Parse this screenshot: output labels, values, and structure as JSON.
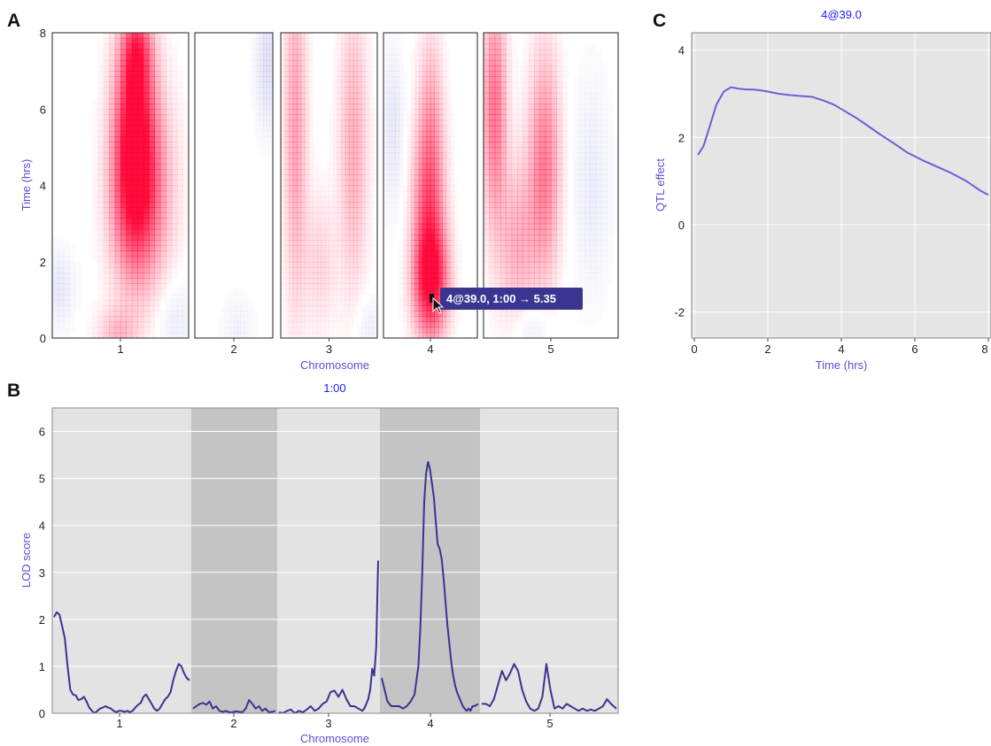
{
  "panels": {
    "a": {
      "letter": "A",
      "y_label": "Time (hrs)",
      "x_label": "Chromosome"
    },
    "b": {
      "letter": "B",
      "title": "1:00",
      "y_label": "LOD score",
      "x_label": "Chromosome"
    },
    "c": {
      "letter": "C",
      "title": "4@39.0",
      "y_label": "QTL effect",
      "x_label": "Time (hrs)"
    }
  },
  "tooltip": {
    "text": "4@39.0, 1:00 → 5.35"
  },
  "colors": {
    "accent": "#5b50d6",
    "title": "#1a1aff",
    "line_b": "#3b3391",
    "line_c": "#6a5fd8",
    "heat_pos": "#ff0033",
    "heat_neg": "#6a6ad0",
    "tooltip_bg": "#3a3590"
  },
  "chart_data": [
    {
      "type": "heatmap",
      "title": "",
      "xlabel": "Chromosome",
      "ylabel": "Time (hrs)",
      "chromosomes": [
        "1",
        "2",
        "3",
        "4",
        "5"
      ],
      "y_ticks": [
        "0",
        "2",
        "4",
        "6",
        "8"
      ],
      "ylim": [
        0,
        8
      ],
      "color_scale": "blue (negative) - white - red (positive)",
      "blobs": [
        {
          "chr": 1,
          "pos": 0.6,
          "time": 5.5,
          "sx": 0.1,
          "sy": 1.8,
          "value": 0.95
        },
        {
          "chr": 1,
          "pos": 0.6,
          "time": 3.5,
          "sx": 0.12,
          "sy": 1.5,
          "value": 0.55
        },
        {
          "chr": 1,
          "pos": 0.62,
          "time": 7.5,
          "sx": 0.07,
          "sy": 0.8,
          "value": 0.5
        },
        {
          "chr": 1,
          "pos": 0.75,
          "time": 4.0,
          "sx": 0.12,
          "sy": 1.8,
          "value": 0.25
        },
        {
          "chr": 1,
          "pos": 0.48,
          "time": 0.1,
          "sx": 0.1,
          "sy": 0.5,
          "value": 0.25
        },
        {
          "chr": 1,
          "pos": 0.05,
          "time": 1.3,
          "sx": 0.08,
          "sy": 0.7,
          "value": -0.15
        },
        {
          "chr": 1,
          "pos": 0.9,
          "time": 0.5,
          "sx": 0.1,
          "sy": 0.8,
          "value": -0.12
        },
        {
          "chr": 2,
          "pos": 0.92,
          "time": 7.2,
          "sx": 0.1,
          "sy": 1.2,
          "value": -0.2
        },
        {
          "chr": 2,
          "pos": 0.55,
          "time": 0.3,
          "sx": 0.15,
          "sy": 0.6,
          "value": -0.08
        },
        {
          "chr": 3,
          "pos": 0.15,
          "time": 5.5,
          "sx": 0.08,
          "sy": 3.0,
          "value": 0.35
        },
        {
          "chr": 3,
          "pos": 0.75,
          "time": 5.0,
          "sx": 0.1,
          "sy": 2.5,
          "value": 0.3
        },
        {
          "chr": 3,
          "pos": 0.4,
          "time": 2.0,
          "sx": 0.12,
          "sy": 1.2,
          "value": 0.15
        },
        {
          "chr": 3,
          "pos": 0.9,
          "time": 0.3,
          "sx": 0.1,
          "sy": 0.6,
          "value": -0.1
        },
        {
          "chr": 4,
          "pos": 0.5,
          "time": 1.5,
          "sx": 0.12,
          "sy": 1.0,
          "value": 0.95
        },
        {
          "chr": 4,
          "pos": 0.48,
          "time": 3.5,
          "sx": 0.11,
          "sy": 1.5,
          "value": 0.6
        },
        {
          "chr": 4,
          "pos": 0.5,
          "time": 6.0,
          "sx": 0.09,
          "sy": 1.5,
          "value": 0.25
        },
        {
          "chr": 4,
          "pos": 0.1,
          "time": 5.5,
          "sx": 0.08,
          "sy": 1.5,
          "value": -0.15
        },
        {
          "chr": 5,
          "pos": 0.08,
          "time": 6.0,
          "sx": 0.06,
          "sy": 2.0,
          "value": 0.55
        },
        {
          "chr": 5,
          "pos": 0.45,
          "time": 4.5,
          "sx": 0.08,
          "sy": 2.0,
          "value": 0.5
        },
        {
          "chr": 5,
          "pos": 0.25,
          "time": 2.5,
          "sx": 0.1,
          "sy": 1.5,
          "value": 0.3
        },
        {
          "chr": 5,
          "pos": 0.8,
          "time": 4.0,
          "sx": 0.1,
          "sy": 2.0,
          "value": -0.12
        },
        {
          "chr": 5,
          "pos": 0.35,
          "time": 0.3,
          "sx": 0.1,
          "sy": 0.5,
          "value": -0.15
        }
      ]
    },
    {
      "type": "line",
      "title": "1:00",
      "xlabel": "Chromosome",
      "ylabel": "LOD score",
      "ylim": [
        0,
        6.5
      ],
      "y_ticks": [
        0,
        1,
        2,
        3,
        4,
        5,
        6
      ],
      "grid": true,
      "chromosomes": [
        {
          "name": "1",
          "shade": "light",
          "x": [
            0,
            0.02,
            0.04,
            0.06,
            0.08,
            0.1,
            0.12,
            0.14,
            0.16,
            0.18,
            0.2,
            0.22,
            0.24,
            0.26,
            0.28,
            0.3,
            0.32,
            0.34,
            0.36,
            0.38,
            0.4,
            0.42,
            0.44,
            0.46,
            0.48,
            0.5,
            0.52,
            0.54,
            0.56,
            0.58,
            0.6,
            0.62,
            0.64,
            0.66,
            0.68,
            0.7,
            0.72,
            0.74,
            0.76,
            0.78,
            0.8,
            0.82,
            0.84,
            0.86,
            0.88,
            0.9,
            0.92,
            0.94,
            0.96,
            0.98,
            1.0
          ],
          "y": [
            2.05,
            2.15,
            2.1,
            1.85,
            1.6,
            1.0,
            0.5,
            0.4,
            0.38,
            0.28,
            0.3,
            0.35,
            0.25,
            0.12,
            0.05,
            0.0,
            0.05,
            0.1,
            0.12,
            0.15,
            0.12,
            0.1,
            0.05,
            0.02,
            0.05,
            0.05,
            0.03,
            0.05,
            0.02,
            0.05,
            0.12,
            0.18,
            0.22,
            0.35,
            0.4,
            0.3,
            0.2,
            0.1,
            0.05,
            0.1,
            0.2,
            0.3,
            0.35,
            0.45,
            0.7,
            0.9,
            1.05,
            1.0,
            0.85,
            0.75,
            0.7
          ]
        },
        {
          "name": "2",
          "shade": "dark",
          "x": [
            0,
            0.04,
            0.08,
            0.12,
            0.16,
            0.2,
            0.24,
            0.28,
            0.32,
            0.36,
            0.4,
            0.44,
            0.48,
            0.52,
            0.56,
            0.6,
            0.64,
            0.68,
            0.72,
            0.76,
            0.8,
            0.84,
            0.88,
            0.92,
            0.96,
            1.0
          ],
          "y": [
            0.1,
            0.15,
            0.2,
            0.22,
            0.18,
            0.25,
            0.1,
            0.15,
            0.05,
            0.03,
            0.05,
            0.02,
            0.02,
            0.04,
            0.03,
            0.02,
            0.1,
            0.28,
            0.2,
            0.1,
            0.15,
            0.05,
            0.1,
            0.02,
            0.03,
            0.05
          ]
        },
        {
          "name": "3",
          "shade": "light",
          "x": [
            0,
            0.04,
            0.08,
            0.12,
            0.16,
            0.2,
            0.24,
            0.28,
            0.32,
            0.36,
            0.4,
            0.44,
            0.48,
            0.52,
            0.56,
            0.6,
            0.64,
            0.68,
            0.72,
            0.76,
            0.8,
            0.84,
            0.86,
            0.88,
            0.9,
            0.92,
            0.94,
            0.96,
            0.98,
            1.0
          ],
          "y": [
            0.02,
            0.0,
            0.05,
            0.08,
            0.0,
            0.05,
            0.02,
            0.08,
            0.15,
            0.05,
            0.1,
            0.2,
            0.25,
            0.45,
            0.48,
            0.35,
            0.5,
            0.3,
            0.15,
            0.15,
            0.1,
            0.05,
            0.1,
            0.2,
            0.3,
            0.5,
            0.95,
            0.8,
            1.4,
            3.25
          ]
        },
        {
          "name": "4",
          "shade": "dark",
          "x": [
            0,
            0.03,
            0.06,
            0.1,
            0.14,
            0.18,
            0.22,
            0.26,
            0.3,
            0.34,
            0.38,
            0.4,
            0.42,
            0.44,
            0.46,
            0.48,
            0.5,
            0.52,
            0.54,
            0.56,
            0.58,
            0.6,
            0.62,
            0.64,
            0.66,
            0.68,
            0.7,
            0.72,
            0.74,
            0.76,
            0.78,
            0.8,
            0.82,
            0.84,
            0.86,
            0.88,
            0.9,
            0.92,
            0.94,
            0.96,
            1.0
          ],
          "y": [
            0.75,
            0.5,
            0.25,
            0.15,
            0.15,
            0.15,
            0.1,
            0.15,
            0.25,
            0.4,
            1.0,
            1.8,
            3.0,
            4.5,
            5.1,
            5.35,
            5.2,
            4.9,
            4.6,
            4.1,
            3.6,
            3.5,
            3.3,
            2.9,
            2.4,
            1.9,
            1.5,
            1.1,
            0.8,
            0.6,
            0.45,
            0.35,
            0.25,
            0.15,
            0.1,
            0.05,
            0.1,
            0.05,
            0.15,
            0.15,
            0.2
          ]
        },
        {
          "name": "5",
          "shade": "light",
          "x": [
            0,
            0.03,
            0.06,
            0.09,
            0.12,
            0.15,
            0.18,
            0.21,
            0.24,
            0.27,
            0.3,
            0.33,
            0.36,
            0.39,
            0.42,
            0.45,
            0.48,
            0.51,
            0.54,
            0.57,
            0.6,
            0.63,
            0.66,
            0.69,
            0.72,
            0.75,
            0.78,
            0.81,
            0.84,
            0.87,
            0.9,
            0.93,
            0.96,
            1.0
          ],
          "y": [
            0.2,
            0.2,
            0.15,
            0.3,
            0.6,
            0.9,
            0.7,
            0.85,
            1.05,
            0.9,
            0.5,
            0.25,
            0.1,
            0.05,
            0.1,
            0.35,
            1.05,
            0.5,
            0.1,
            0.15,
            0.1,
            0.2,
            0.15,
            0.1,
            0.05,
            0.1,
            0.05,
            0.08,
            0.05,
            0.1,
            0.15,
            0.3,
            0.2,
            0.1
          ]
        }
      ],
      "peak": {
        "chromosome": "4",
        "value": 5.35
      }
    },
    {
      "type": "line",
      "title": "4@39.0",
      "xlabel": "Time (hrs)",
      "ylabel": "QTL effect",
      "xlim": [
        0,
        8
      ],
      "ylim": [
        -2.6,
        4.4
      ],
      "x_ticks": [
        0,
        2,
        4,
        6,
        8
      ],
      "y_ticks": [
        -2,
        0,
        2,
        4
      ],
      "grid": true,
      "x": [
        0.1,
        0.25,
        0.4,
        0.6,
        0.8,
        1.0,
        1.2,
        1.4,
        1.6,
        1.8,
        2.0,
        2.3,
        2.6,
        2.9,
        3.2,
        3.5,
        3.8,
        4.1,
        4.4,
        4.7,
        5.0,
        5.4,
        5.8,
        6.2,
        6.6,
        7.0,
        7.4,
        7.8,
        8.0
      ],
      "y": [
        1.6,
        1.8,
        2.2,
        2.75,
        3.05,
        3.15,
        3.12,
        3.1,
        3.1,
        3.08,
        3.05,
        3.0,
        2.97,
        2.95,
        2.93,
        2.85,
        2.75,
        2.6,
        2.45,
        2.28,
        2.1,
        1.88,
        1.65,
        1.48,
        1.33,
        1.18,
        1.0,
        0.77,
        0.68
      ]
    }
  ]
}
